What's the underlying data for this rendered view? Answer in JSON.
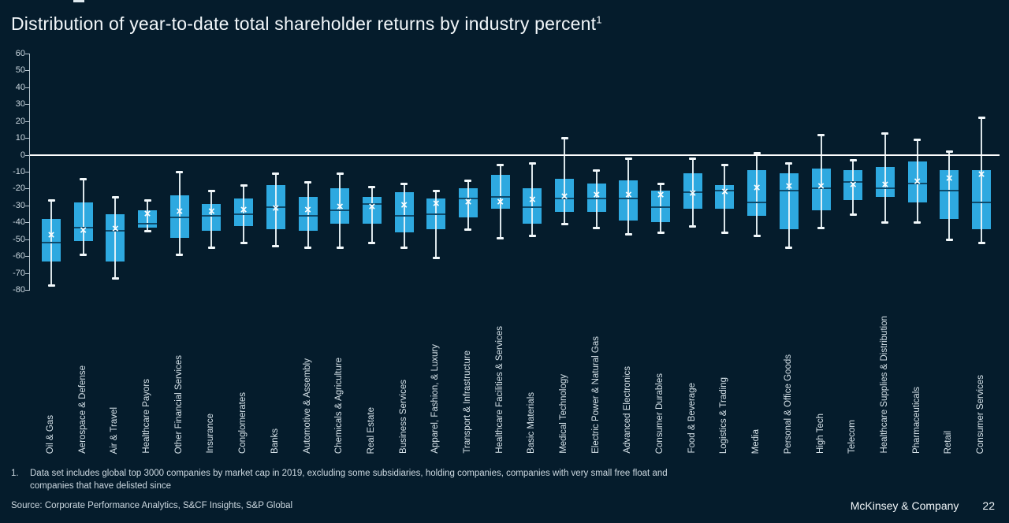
{
  "page": {
    "title": "Distribution of year-to-date total shareholder returns by industry percent",
    "title_superscript": "1",
    "footnote_number": "1.",
    "footnote_text": "Data set includes global top 3000 companies by market cap in 2019, excluding some subsidiaries, holding companies, companies with very small free float and companies that have delisted since",
    "source": "Source: Corporate Performance Analytics, S&CF Insights, S&P Global",
    "footer_brand": "McKinsey & Company",
    "page_number": "22"
  },
  "colors": {
    "background": "#051c2c",
    "box_fill": "#2ea9e0",
    "median_line": "#0e4a6b",
    "whisker": "#eef6fa",
    "zero_line": "#ffffff",
    "axis_text": "#cdd9e1",
    "title_text": "#f2f7fa"
  },
  "chart_data": {
    "type": "boxplot",
    "title": "Distribution of year-to-date total shareholder returns by industry percent",
    "xlabel": "",
    "ylabel": "percent",
    "ylim": [
      -80,
      60
    ],
    "yticks": [
      60,
      50,
      40,
      30,
      20,
      10,
      0,
      -10,
      -20,
      -30,
      -40,
      -50,
      -60,
      -70,
      -80
    ],
    "grid": false,
    "zero_line": true,
    "legend": "none",
    "categories": [
      "Oil & Gas",
      "Aerospace & Defense",
      "Air & Travel",
      "Healthcare Payors",
      "Other Financial Services",
      "Insurance",
      "Conglomerates",
      "Banks",
      "Automotive & Assembly",
      "Chemicals & Agriculture",
      "Real Estate",
      "Business Services",
      "Apparel, Fashion, & Luxury",
      "Transport & Infrastructure",
      "Healthcare Facilities & Services",
      "Basic Materials",
      "Medical Technology",
      "Electric Power & Natural Gas",
      "Advanced Electronics",
      "Consumer Durables",
      "Food & Beverage",
      "Logistics & Trading",
      "Media",
      "Personal & Office Goods",
      "High Tech",
      "Telecom",
      "Healthcare Supplies & Distribution",
      "Pharmaceuticals",
      "Retail",
      "Consumer Services"
    ],
    "boxes": [
      {
        "category": "Oil & Gas",
        "low": -77,
        "q1": -63,
        "median": -52,
        "q3": -38,
        "high": -27,
        "mean": -48
      },
      {
        "category": "Aerospace & Defense",
        "low": -59,
        "q1": -51,
        "median": -43,
        "q3": -28,
        "high": -14,
        "mean": -45
      },
      {
        "category": "Air & Travel",
        "low": -73,
        "q1": -63,
        "median": -45,
        "q3": -35,
        "high": -25,
        "mean": -44
      },
      {
        "category": "Healthcare Payors",
        "low": -45,
        "q1": -43,
        "median": -41,
        "q3": -33,
        "high": -27,
        "mean": -35
      },
      {
        "category": "Other Financial Services",
        "low": -59,
        "q1": -49,
        "median": -37,
        "q3": -24,
        "high": -10,
        "mean": -34
      },
      {
        "category": "Insurance",
        "low": -55,
        "q1": -45,
        "median": -36,
        "q3": -29,
        "high": -21,
        "mean": -34
      },
      {
        "category": "Conglomerates",
        "low": -52,
        "q1": -42,
        "median": -35,
        "q3": -26,
        "high": -18,
        "mean": -33
      },
      {
        "category": "Banks",
        "low": -54,
        "q1": -44,
        "median": -31,
        "q3": -18,
        "high": -11,
        "mean": -32
      },
      {
        "category": "Automotive & Assembly",
        "low": -55,
        "q1": -45,
        "median": -36,
        "q3": -25,
        "high": -16,
        "mean": -33
      },
      {
        "category": "Chemicals & Agriculture",
        "low": -55,
        "q1": -41,
        "median": -33,
        "q3": -20,
        "high": -11,
        "mean": -31
      },
      {
        "category": "Real Estate",
        "low": -52,
        "q1": -41,
        "median": -29,
        "q3": -25,
        "high": -19,
        "mean": -31
      },
      {
        "category": "Business Services",
        "low": -55,
        "q1": -46,
        "median": -36,
        "q3": -22,
        "high": -17,
        "mean": -30
      },
      {
        "category": "Apparel, Fashion, & Luxury",
        "low": -61,
        "q1": -44,
        "median": -35,
        "q3": -26,
        "high": -21,
        "mean": -29
      },
      {
        "category": "Transport & Infrastructure",
        "low": -44,
        "q1": -37,
        "median": -26,
        "q3": -20,
        "high": -15,
        "mean": -28
      },
      {
        "category": "Healthcare Facilities & Services",
        "low": -49,
        "q1": -32,
        "median": -25,
        "q3": -12,
        "high": -6,
        "mean": -28
      },
      {
        "category": "Basic Materials",
        "low": -48,
        "q1": -41,
        "median": -31,
        "q3": -20,
        "high": -5,
        "mean": -27
      },
      {
        "category": "Medical Technology",
        "low": -41,
        "q1": -34,
        "median": -26,
        "q3": -14,
        "high": 10,
        "mean": -25
      },
      {
        "category": "Electric Power & Natural Gas",
        "low": -43,
        "q1": -34,
        "median": -26,
        "q3": -17,
        "high": -9,
        "mean": -24
      },
      {
        "category": "Advanced Electronics",
        "low": -47,
        "q1": -39,
        "median": -26,
        "q3": -15,
        "high": -2,
        "mean": -24
      },
      {
        "category": "Consumer Durables",
        "low": -46,
        "q1": -40,
        "median": -31,
        "q3": -21,
        "high": -17,
        "mean": -24
      },
      {
        "category": "Food & Beverage",
        "low": -42,
        "q1": -32,
        "median": -22,
        "q3": -11,
        "high": -2,
        "mean": -23
      },
      {
        "category": "Logistics & Trading",
        "low": -46,
        "q1": -32,
        "median": -21,
        "q3": -18,
        "high": -6,
        "mean": -22
      },
      {
        "category": "Media",
        "low": -48,
        "q1": -36,
        "median": -28,
        "q3": -9,
        "high": 1,
        "mean": -20
      },
      {
        "category": "Personal & Office Goods",
        "low": -55,
        "q1": -44,
        "median": -21,
        "q3": -11,
        "high": -5,
        "mean": -19
      },
      {
        "category": "High Tech",
        "low": -43,
        "q1": -33,
        "median": -20,
        "q3": -8,
        "high": 12,
        "mean": -19
      },
      {
        "category": "Telecom",
        "low": -35,
        "q1": -27,
        "median": -16,
        "q3": -9,
        "high": -3,
        "mean": -18
      },
      {
        "category": "Healthcare Supplies & Distribution",
        "low": -40,
        "q1": -25,
        "median": -20,
        "q3": -7,
        "high": 13,
        "mean": -18
      },
      {
        "category": "Pharmaceuticals",
        "low": -40,
        "q1": -28,
        "median": -17,
        "q3": -4,
        "high": 9,
        "mean": -16
      },
      {
        "category": "Retail",
        "low": -50,
        "q1": -38,
        "median": -21,
        "q3": -9,
        "high": 2,
        "mean": -14
      },
      {
        "category": "Consumer Services",
        "low": -52,
        "q1": -44,
        "median": -28,
        "q3": -9,
        "high": 22,
        "mean": -12
      }
    ]
  }
}
